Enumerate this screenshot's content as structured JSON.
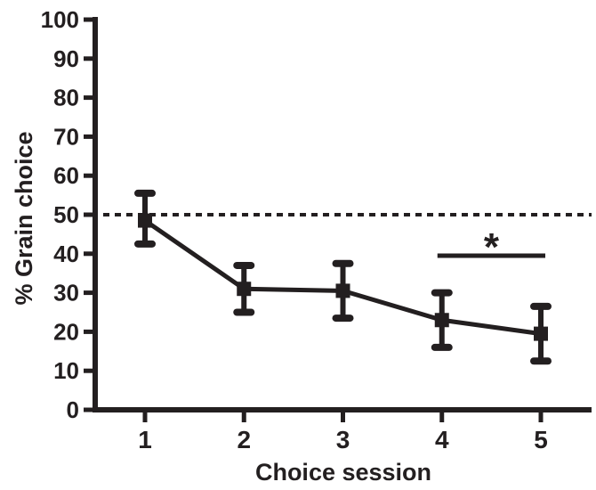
{
  "figure": {
    "background_color": "#ffffff",
    "ink_color": "#231f20"
  },
  "chart_data": {
    "type": "line",
    "title": "",
    "xlabel": "Choice session",
    "ylabel": "% Grain choice",
    "x": [
      1,
      2,
      3,
      4,
      5
    ],
    "xtick_labels": [
      "1",
      "2",
      "3",
      "4",
      "5"
    ],
    "yticks": [
      0,
      10,
      20,
      30,
      40,
      50,
      60,
      70,
      80,
      90,
      100
    ],
    "ylim": [
      0,
      100
    ],
    "grid": false,
    "legend": null,
    "series": [
      {
        "name": "grain-choice-mean",
        "marker": "filled-square",
        "values": [
          48.5,
          31,
          30.5,
          23,
          19.5
        ],
        "error_low": [
          42.5,
          25,
          23.5,
          16,
          12.5
        ],
        "error_high": [
          55.5,
          37,
          37.5,
          30,
          26.5
        ]
      }
    ],
    "reference_line": {
      "y": 50,
      "style": "dashed"
    },
    "significance": {
      "x_from": 4,
      "x_to": 5,
      "y": 39.5,
      "label": "*"
    }
  }
}
